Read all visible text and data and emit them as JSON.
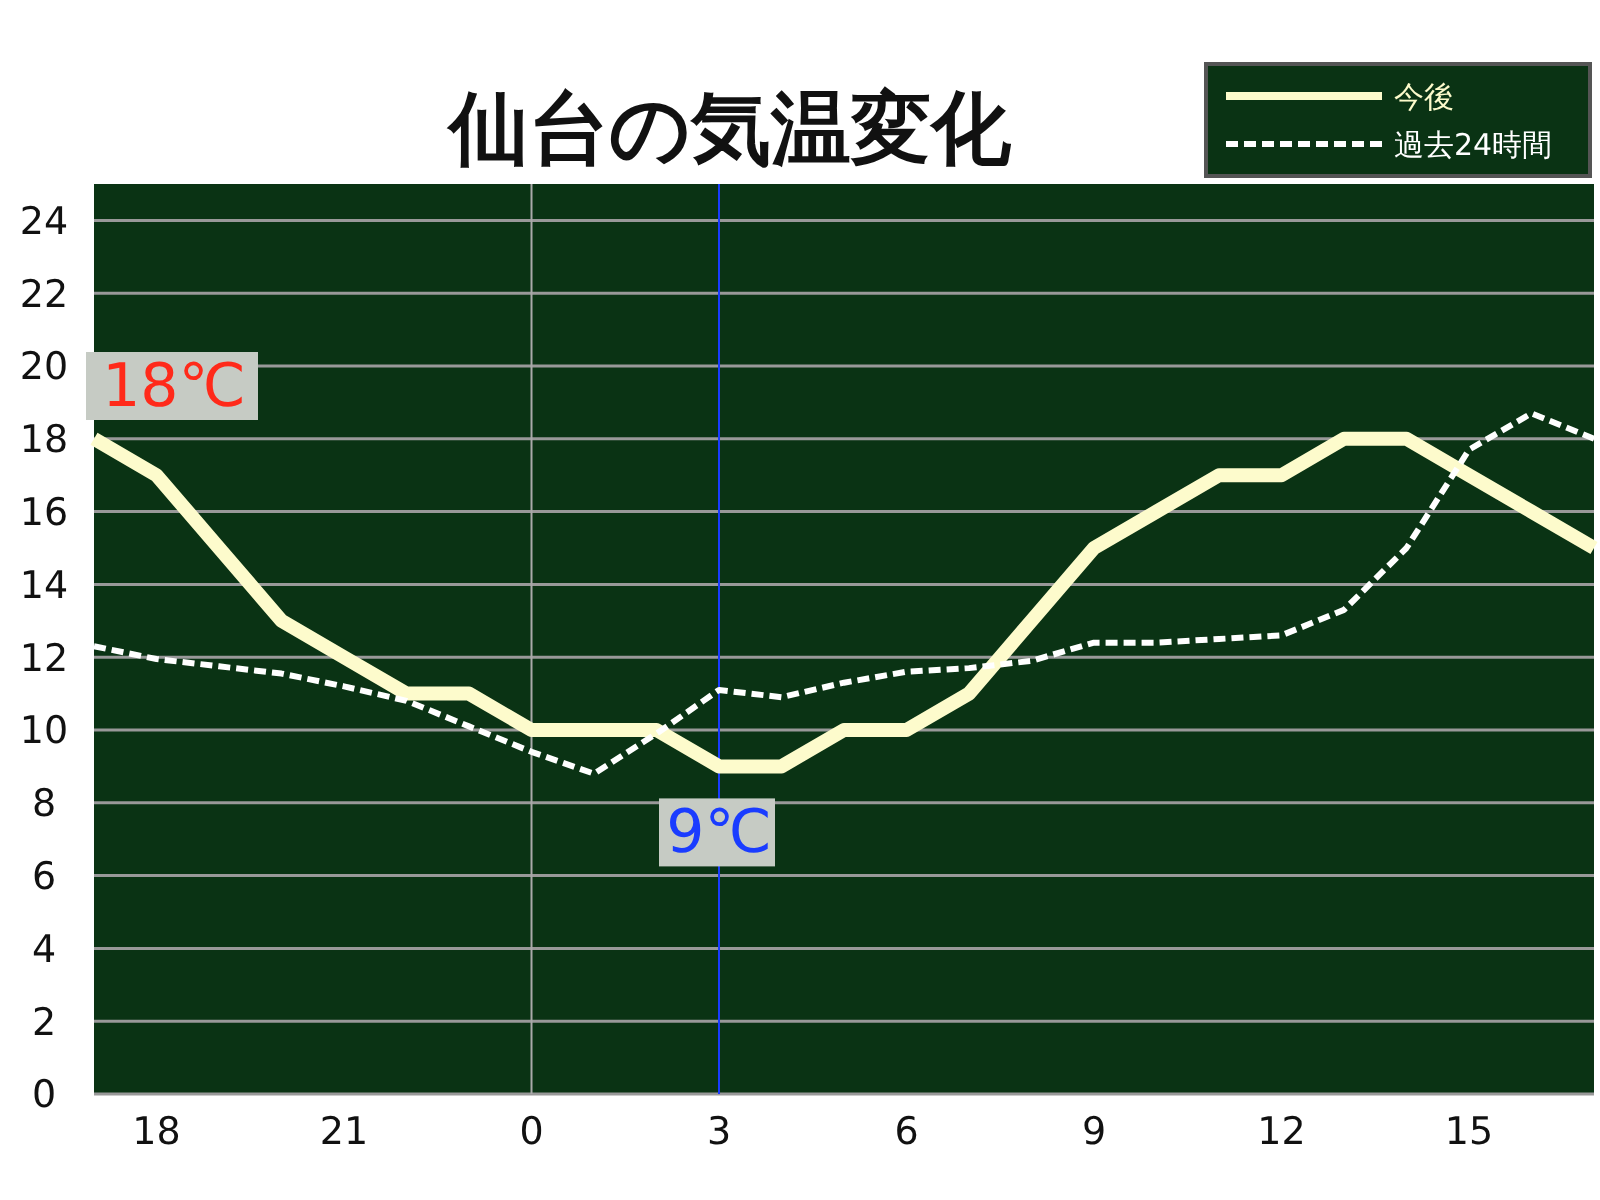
{
  "chart_data": {
    "type": "line",
    "title": "仙台の気温変化",
    "categories": [
      null,
      "18",
      null,
      null,
      "21",
      null,
      null,
      "0",
      null,
      null,
      "3",
      null,
      null,
      "6",
      null,
      null,
      "9",
      null,
      null,
      "12",
      null,
      null,
      "15",
      null,
      null
    ],
    "ylim": [
      0,
      25
    ],
    "yticks": [
      0,
      2,
      4,
      6,
      8,
      10,
      12,
      14,
      16,
      18,
      20,
      22,
      24
    ],
    "grid": "y",
    "legend": "top right",
    "marker": "none",
    "series": [
      {
        "name": "今後",
        "color": "#fdfbcc",
        "line_style": "solid",
        "values": [
          18,
          17,
          15,
          13,
          12,
          11,
          11,
          10,
          10,
          10,
          9,
          9,
          10,
          10,
          11,
          13,
          15,
          16,
          17,
          17,
          18,
          18,
          17,
          16,
          15
        ]
      },
      {
        "name": "過去24時間",
        "color": "#ffffff",
        "line_style": "dashed",
        "values": [
          12.3,
          11.95,
          11.75,
          11.55,
          11.2,
          10.8,
          10.1,
          9.4,
          8.8,
          9.9,
          11.1,
          10.9,
          11.3,
          11.6,
          11.7,
          11.9,
          12.4,
          12.4,
          12.5,
          12.6,
          13.3,
          15.0,
          17.7,
          18.7,
          18.0
        ]
      }
    ],
    "ref_lines": [
      {
        "axis": "x",
        "value": "0",
        "color": "#aaaaaa"
      },
      {
        "axis": "x",
        "value": "3",
        "color": "#1a3cff"
      }
    ],
    "annotations": [
      "18℃",
      {
        "text": "9℃",
        "x": "3",
        "y": 9
      }
    ]
  }
}
